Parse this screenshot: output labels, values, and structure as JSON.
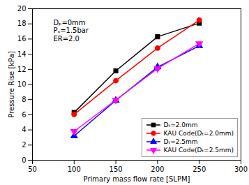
{
  "chart_data": {
    "type": "line",
    "x": [
      100,
      150,
      200,
      250
    ],
    "series": [
      {
        "name": "Dₜ=2.0mm",
        "color": "black",
        "values": [
          6.3,
          11.8,
          16.3,
          18.1
        ],
        "marker": "square",
        "line_style": "solid"
      },
      {
        "name": "KAU Code(Dₜ=2.0mm)",
        "color": "red",
        "values": [
          6.05,
          10.5,
          14.8,
          18.5
        ],
        "marker": "circle",
        "line_style": "solid"
      },
      {
        "name": "Dₜ=2.5mm",
        "color": "blue",
        "values": [
          3.2,
          7.9,
          12.3,
          15.1
        ],
        "marker": "triangle-up",
        "line_style": "solid"
      },
      {
        "name": "KAU Code(Dₜ=2.5mm)",
        "color": "magenta",
        "values": [
          3.8,
          7.95,
          12.1,
          15.4
        ],
        "marker": "triangle-down",
        "line_style": "solid"
      }
    ],
    "xlabel": "Primary mass flow rate [SLPM]",
    "ylabel": "Pressure Rise [kPa]",
    "xlim": [
      50,
      300
    ],
    "ylim": [
      0,
      20
    ],
    "xticks": [
      50,
      100,
      150,
      200,
      250,
      300
    ],
    "yticks": [
      0,
      2,
      4,
      6,
      8,
      10,
      12,
      14,
      16,
      18,
      20
    ],
    "annotations": [
      "Dₚ=0mm",
      "Pₛ=1.5bar",
      "ER=2.0"
    ],
    "legend": "lower right",
    "grid": false
  }
}
